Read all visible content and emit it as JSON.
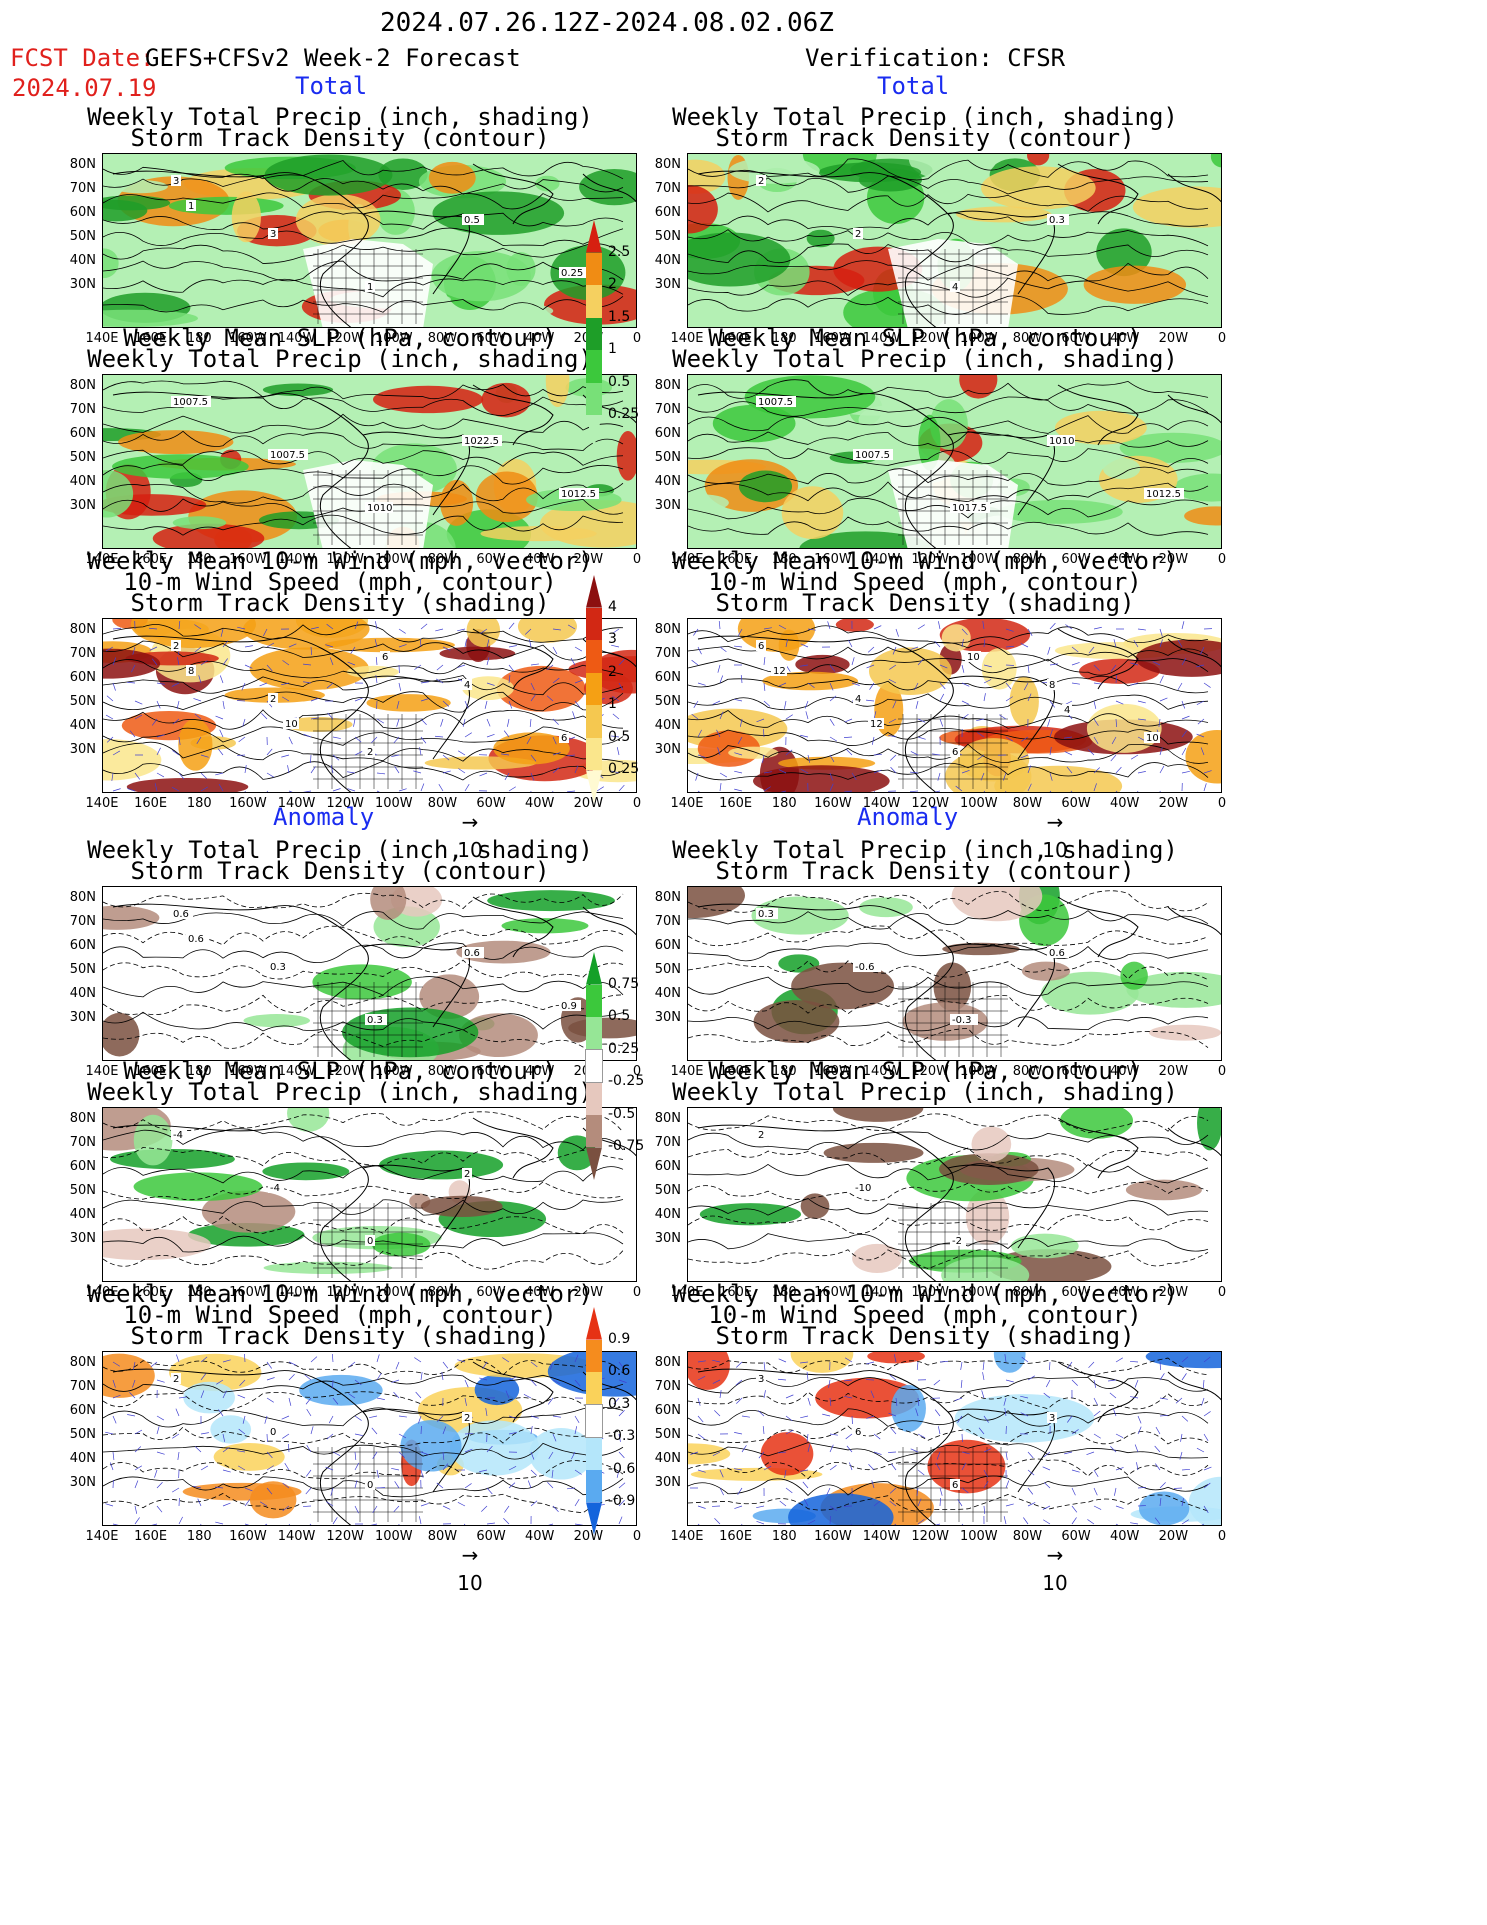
{
  "header": {
    "date_range": "2024.07.26.12Z-2024.08.02.06Z",
    "fcst_label": "FCST Date:",
    "model": "GEFS+CFSv2 Week-2 Forecast",
    "fcst_date": "2024.07.19",
    "verification": "Verification: CFSR"
  },
  "sections": {
    "total": "Total",
    "anomaly": "Anomaly"
  },
  "panel_titles": {
    "precip_storm": [
      "Weekly Total Precip (inch, shading)",
      "Storm Track Density (contour)"
    ],
    "slp_precip": [
      "Weekly Mean SLP (hPa, contour)",
      "Weekly Total Precip (inch, shading)"
    ],
    "wind": [
      "Weekly Mean 10-m Wind (mph, vector)",
      "10-m Wind Speed (mph, contour)",
      "Storm Track Density (shading)"
    ]
  },
  "axes": {
    "y": [
      "80N",
      "70N",
      "60N",
      "50N",
      "40N",
      "30N"
    ],
    "x": [
      "140E",
      "160E",
      "180",
      "160W",
      "140W",
      "120W",
      "100W",
      "80W",
      "60W",
      "40W",
      "20W",
      "0"
    ]
  },
  "vector_ref": "10",
  "colorbars": {
    "precip_total": {
      "labels": [
        "2.5",
        "2",
        "1.5",
        "1",
        "0.5",
        "0.25"
      ],
      "colors": [
        "#d62010",
        "#f08c14",
        "#f5d060",
        "#1e9e28",
        "#3cc83c",
        "#78e078",
        "#b4f0b4"
      ]
    },
    "storm_total": {
      "labels": [
        "4",
        "3",
        "2",
        "1",
        "0.5",
        "0.25"
      ],
      "colors": [
        "#8c1010",
        "#d22814",
        "#ee5a14",
        "#f5a014",
        "#f5c850",
        "#fae68c",
        "#fffad2"
      ]
    },
    "precip_anom": {
      "labels": [
        "0.75",
        "0.5",
        "0.25",
        "-0.25",
        "-0.5",
        "-0.75"
      ],
      "colors": [
        "#14a028",
        "#3cc83c",
        "#96e696",
        "#ffffff",
        "#e6c8be",
        "#b48c7c",
        "#7a5040"
      ]
    },
    "storm_anom": {
      "labels": [
        "0.9",
        "0.6",
        "0.3",
        "-0.3",
        "-0.6",
        "-0.9"
      ],
      "colors": [
        "#e63214",
        "#f58c1e",
        "#fad25a",
        "#ffffff",
        "#b4e6fa",
        "#5aaaf0",
        "#1464dc"
      ]
    }
  },
  "contour_labels": {
    "fc_precip": [
      "3",
      "3",
      "1",
      "0.5",
      "0.25",
      "1"
    ],
    "fc_slp": [
      "1007.5",
      "1007.5",
      "1010",
      "1022.5",
      "1012.5"
    ],
    "fc_wind": [
      "2",
      "2",
      "2",
      "4",
      "6",
      "8",
      "10",
      "6"
    ],
    "ob_precip": [
      "2",
      "2",
      "4",
      "0.3"
    ],
    "ob_slp": [
      "1007.5",
      "1007.5",
      "1017.5",
      "1010",
      "1012.5"
    ],
    "ob_wind": [
      "6",
      "4",
      "6",
      "8",
      "10",
      "12",
      "12",
      "10",
      "4"
    ],
    "fa_precip": [
      "0.6",
      "0.3",
      "0.3",
      "0.6",
      "0.9",
      "0.6"
    ],
    "fa_slp": [
      "-4",
      "-4",
      "0",
      "2"
    ],
    "fa_wind": [
      "2",
      "0",
      "0",
      "2"
    ],
    "oa_precip": [
      "0.3",
      "-0.6",
      "-0.3",
      "0.6"
    ],
    "oa_slp": [
      "2",
      "-10",
      "-2"
    ],
    "oa_wind": [
      "3",
      "6",
      "6",
      "3"
    ]
  }
}
